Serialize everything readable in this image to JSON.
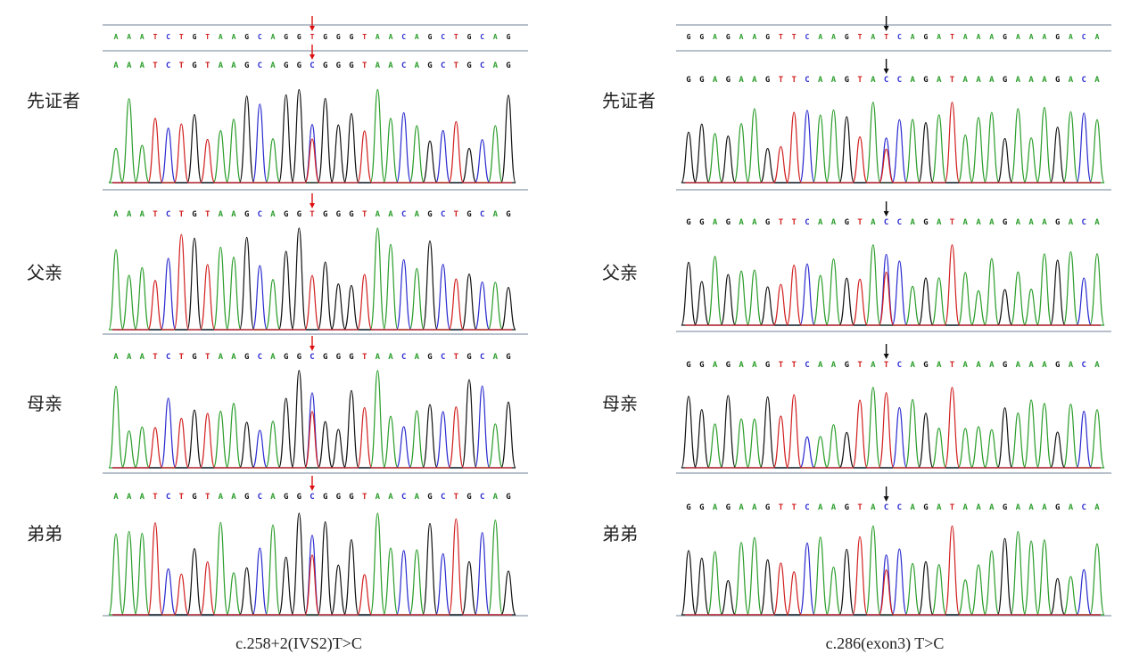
{
  "panels": [
    {
      "caption": "c.258+2(IVS2)T>C",
      "reference_sequence": "AAATCTGTAAGCAGGTGGGTAACAGCTGCAG",
      "tracks": [
        {
          "label": "先证者",
          "sequence": "AAATCTGTAAGCAGGCGGGTAACAGCTGCAG",
          "marked_base": "C",
          "zygosity": "heterozygous"
        },
        {
          "label": "父亲",
          "sequence": "AAATCTGTAAGCAGGTGGGTAACAGCTGCAG",
          "marked_base": "T",
          "zygosity": "wild-type"
        },
        {
          "label": "母亲",
          "sequence": "AAATCTGTAAGCAGGCGGGTAACAGCTGCAG",
          "marked_base": "C",
          "zygosity": "heterozygous"
        },
        {
          "label": "弟弟",
          "sequence": "AAATCTGTAAGCAGGCGGGTAACAGCTGCAG",
          "marked_base": "C",
          "zygosity": "heterozygous"
        }
      ],
      "arrow_color": "#dd1111"
    },
    {
      "caption": "c.286(exon3) T>C",
      "reference_sequence": "GGAGAAGTTCAAGTATCAGATAAAGAAAGACA",
      "tracks": [
        {
          "label": "先证者",
          "sequence": "GGAGAAGTTCAAGTACCAGATAAAGAAAGACA",
          "marked_base": "C",
          "zygosity": "heterozygous"
        },
        {
          "label": "父亲",
          "sequence": "GGAGAAGTTCAAGTACCAGATAAAGAAAGACA",
          "marked_base": "C",
          "zygosity": "heterozygous"
        },
        {
          "label": "母亲",
          "sequence": "GGAGAAGTTCAAGTATCAGATAAAGAAAGACA",
          "marked_base": "T",
          "zygosity": "wild-type"
        },
        {
          "label": "弟弟",
          "sequence": "GGAGAAGTTCAAGTACCAGATAAAGAAAGACA",
          "marked_base": "C",
          "zygosity": "heterozygous"
        }
      ],
      "arrow_color": "#111111"
    }
  ],
  "base_colors": {
    "A": "#2a9d2a",
    "C": "#2b2bd0",
    "G": "#111111",
    "T": "#d22020"
  }
}
